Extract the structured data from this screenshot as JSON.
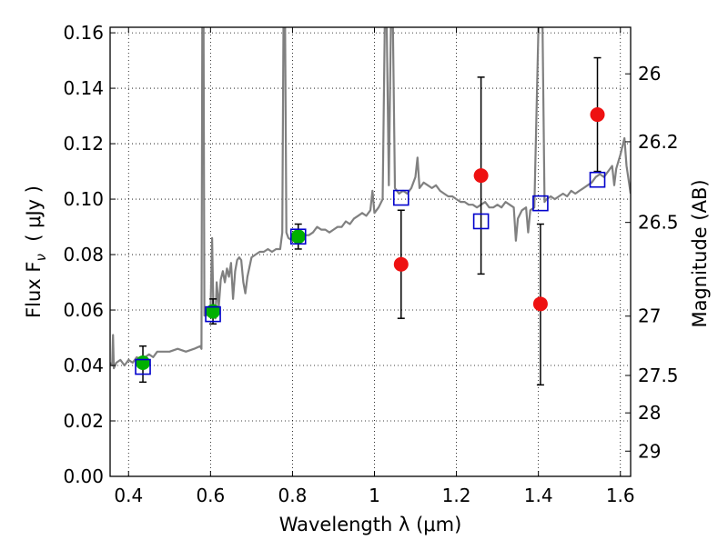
{
  "chart_data": {
    "type": "scatter",
    "xlabel": "Wavelength  λ (μm)",
    "ylabel": "Flux  F",
    "ylabel_sub": "ν",
    "ylabel_units": "  ( μJy )",
    "ylabel_right": "Magnitude (AB)",
    "xlim": [
      0.355,
      1.625
    ],
    "ylim": [
      0.0,
      0.162
    ],
    "x_ticks": [
      0.4,
      0.6,
      0.8,
      1.0,
      1.2,
      1.4,
      1.6
    ],
    "x_tick_labels": [
      "0.4",
      "0.6",
      "0.8",
      "1",
      "1.2",
      "1.4",
      "1.6"
    ],
    "y_ticks": [
      0.0,
      0.02,
      0.04,
      0.06,
      0.08,
      0.1,
      0.12,
      0.14,
      0.16
    ],
    "y_tick_labels": [
      "0.00",
      "0.02",
      "0.04",
      "0.06",
      "0.08",
      "0.10",
      "0.12",
      "0.14",
      "0.16"
    ],
    "right_ticks": [
      {
        "label": "26",
        "flux": 0.1452
      },
      {
        "label": "26.2",
        "flux": 0.1207
      },
      {
        "label": "26.5",
        "flux": 0.0916
      },
      {
        "label": "27",
        "flux": 0.0578
      },
      {
        "label": "27.5",
        "flux": 0.0364
      },
      {
        "label": "28",
        "flux": 0.0229
      },
      {
        "label": "29",
        "flux": 0.0091
      }
    ],
    "grid": true,
    "colors": {
      "spectrum": "#808080",
      "green_points": "#00b000",
      "red_points": "#ee1111",
      "model_squares": "#0000cc",
      "error_bars": "#000000"
    },
    "series": [
      {
        "kind": "line",
        "points": [
          [
            0.355,
            0.041
          ],
          [
            0.36,
            0.04
          ],
          [
            0.362,
            0.051
          ],
          [
            0.364,
            0.039
          ],
          [
            0.37,
            0.041
          ],
          [
            0.38,
            0.042
          ],
          [
            0.39,
            0.04
          ],
          [
            0.4,
            0.042
          ],
          [
            0.41,
            0.041
          ],
          [
            0.42,
            0.043
          ],
          [
            0.43,
            0.042
          ],
          [
            0.44,
            0.043
          ],
          [
            0.45,
            0.044
          ],
          [
            0.46,
            0.043
          ],
          [
            0.47,
            0.045
          ],
          [
            0.48,
            0.045
          ],
          [
            0.5,
            0.045
          ],
          [
            0.52,
            0.046
          ],
          [
            0.54,
            0.045
          ],
          [
            0.56,
            0.046
          ],
          [
            0.575,
            0.047
          ],
          [
            0.578,
            0.046
          ],
          [
            0.58,
            0.162
          ],
          [
            0.583,
            0.162
          ],
          [
            0.585,
            0.058
          ],
          [
            0.59,
            0.058
          ],
          [
            0.595,
            0.06
          ],
          [
            0.6,
            0.059
          ],
          [
            0.604,
            0.086
          ],
          [
            0.607,
            0.06
          ],
          [
            0.612,
            0.057
          ],
          [
            0.615,
            0.07
          ],
          [
            0.62,
            0.061
          ],
          [
            0.625,
            0.071
          ],
          [
            0.63,
            0.074
          ],
          [
            0.635,
            0.07
          ],
          [
            0.64,
            0.075
          ],
          [
            0.645,
            0.072
          ],
          [
            0.65,
            0.077
          ],
          [
            0.655,
            0.064
          ],
          [
            0.66,
            0.074
          ],
          [
            0.665,
            0.078
          ],
          [
            0.67,
            0.079
          ],
          [
            0.675,
            0.078
          ],
          [
            0.68,
            0.07
          ],
          [
            0.685,
            0.066
          ],
          [
            0.69,
            0.072
          ],
          [
            0.7,
            0.079
          ],
          [
            0.71,
            0.08
          ],
          [
            0.72,
            0.081
          ],
          [
            0.73,
            0.081
          ],
          [
            0.74,
            0.082
          ],
          [
            0.75,
            0.081
          ],
          [
            0.76,
            0.082
          ],
          [
            0.77,
            0.082
          ],
          [
            0.775,
            0.088
          ],
          [
            0.778,
            0.162
          ],
          [
            0.782,
            0.162
          ],
          [
            0.785,
            0.088
          ],
          [
            0.79,
            0.086
          ],
          [
            0.8,
            0.085
          ],
          [
            0.81,
            0.086
          ],
          [
            0.82,
            0.085
          ],
          [
            0.83,
            0.087
          ],
          [
            0.84,
            0.087
          ],
          [
            0.85,
            0.088
          ],
          [
            0.86,
            0.09
          ],
          [
            0.87,
            0.089
          ],
          [
            0.88,
            0.089
          ],
          [
            0.89,
            0.088
          ],
          [
            0.9,
            0.089
          ],
          [
            0.91,
            0.09
          ],
          [
            0.92,
            0.09
          ],
          [
            0.93,
            0.092
          ],
          [
            0.94,
            0.091
          ],
          [
            0.95,
            0.093
          ],
          [
            0.96,
            0.094
          ],
          [
            0.97,
            0.095
          ],
          [
            0.98,
            0.094
          ],
          [
            0.99,
            0.096
          ],
          [
            0.995,
            0.103
          ],
          [
            1.0,
            0.095
          ],
          [
            1.01,
            0.097
          ],
          [
            1.02,
            0.1
          ],
          [
            1.025,
            0.162
          ],
          [
            1.03,
            0.162
          ],
          [
            1.035,
            0.105
          ],
          [
            1.04,
            0.162
          ],
          [
            1.045,
            0.162
          ],
          [
            1.05,
            0.104
          ],
          [
            1.06,
            0.102
          ],
          [
            1.07,
            0.103
          ],
          [
            1.08,
            0.102
          ],
          [
            1.09,
            0.104
          ],
          [
            1.1,
            0.108
          ],
          [
            1.105,
            0.115
          ],
          [
            1.11,
            0.104
          ],
          [
            1.12,
            0.106
          ],
          [
            1.13,
            0.105
          ],
          [
            1.14,
            0.104
          ],
          [
            1.15,
            0.105
          ],
          [
            1.16,
            0.103
          ],
          [
            1.17,
            0.102
          ],
          [
            1.18,
            0.101
          ],
          [
            1.19,
            0.101
          ],
          [
            1.2,
            0.1
          ],
          [
            1.21,
            0.099
          ],
          [
            1.22,
            0.099
          ],
          [
            1.23,
            0.098
          ],
          [
            1.24,
            0.098
          ],
          [
            1.25,
            0.097
          ],
          [
            1.26,
            0.098
          ],
          [
            1.27,
            0.099
          ],
          [
            1.28,
            0.097
          ],
          [
            1.29,
            0.097
          ],
          [
            1.3,
            0.098
          ],
          [
            1.31,
            0.097
          ],
          [
            1.32,
            0.099
          ],
          [
            1.33,
            0.098
          ],
          [
            1.34,
            0.097
          ],
          [
            1.345,
            0.085
          ],
          [
            1.35,
            0.093
          ],
          [
            1.36,
            0.096
          ],
          [
            1.37,
            0.097
          ],
          [
            1.375,
            0.088
          ],
          [
            1.38,
            0.096
          ],
          [
            1.39,
            0.097
          ],
          [
            1.4,
            0.162
          ],
          [
            1.41,
            0.162
          ],
          [
            1.415,
            0.099
          ],
          [
            1.42,
            0.1
          ],
          [
            1.43,
            0.101
          ],
          [
            1.44,
            0.1
          ],
          [
            1.45,
            0.101
          ],
          [
            1.46,
            0.102
          ],
          [
            1.47,
            0.101
          ],
          [
            1.48,
            0.103
          ],
          [
            1.49,
            0.102
          ],
          [
            1.5,
            0.103
          ],
          [
            1.51,
            0.104
          ],
          [
            1.52,
            0.105
          ],
          [
            1.53,
            0.106
          ],
          [
            1.54,
            0.108
          ],
          [
            1.55,
            0.109
          ],
          [
            1.56,
            0.108
          ],
          [
            1.57,
            0.11
          ],
          [
            1.58,
            0.112
          ],
          [
            1.585,
            0.105
          ],
          [
            1.59,
            0.111
          ],
          [
            1.6,
            0.116
          ],
          [
            1.61,
            0.122
          ],
          [
            1.615,
            0.112
          ],
          [
            1.625,
            0.102
          ]
        ]
      },
      {
        "kind": "points",
        "marker": "circle",
        "color": "green",
        "points": [
          {
            "x": 0.435,
            "y": 0.041,
            "err": [
              0.034,
              0.047
            ]
          },
          {
            "x": 0.606,
            "y": 0.0595,
            "err": [
              0.055,
              0.064
            ]
          },
          {
            "x": 0.814,
            "y": 0.0865,
            "err": [
              0.082,
              0.091
            ]
          }
        ]
      },
      {
        "kind": "points",
        "marker": "circle",
        "color": "red",
        "points": [
          {
            "x": 1.065,
            "y": 0.0765,
            "err": [
              0.057,
              0.096
            ]
          },
          {
            "x": 1.26,
            "y": 0.1085,
            "err": [
              0.073,
              0.144
            ]
          },
          {
            "x": 1.405,
            "y": 0.0622,
            "err": [
              0.033,
              0.091
            ]
          },
          {
            "x": 1.544,
            "y": 0.1305,
            "err": [
              0.11,
              0.151
            ]
          }
        ]
      },
      {
        "kind": "points",
        "marker": "square",
        "color": "blue",
        "points": [
          {
            "x": 0.435,
            "y": 0.0395
          },
          {
            "x": 0.606,
            "y": 0.0585
          },
          {
            "x": 0.814,
            "y": 0.0865
          },
          {
            "x": 1.065,
            "y": 0.1005
          },
          {
            "x": 1.26,
            "y": 0.092
          },
          {
            "x": 1.405,
            "y": 0.0985
          },
          {
            "x": 1.544,
            "y": 0.107
          }
        ]
      }
    ]
  }
}
